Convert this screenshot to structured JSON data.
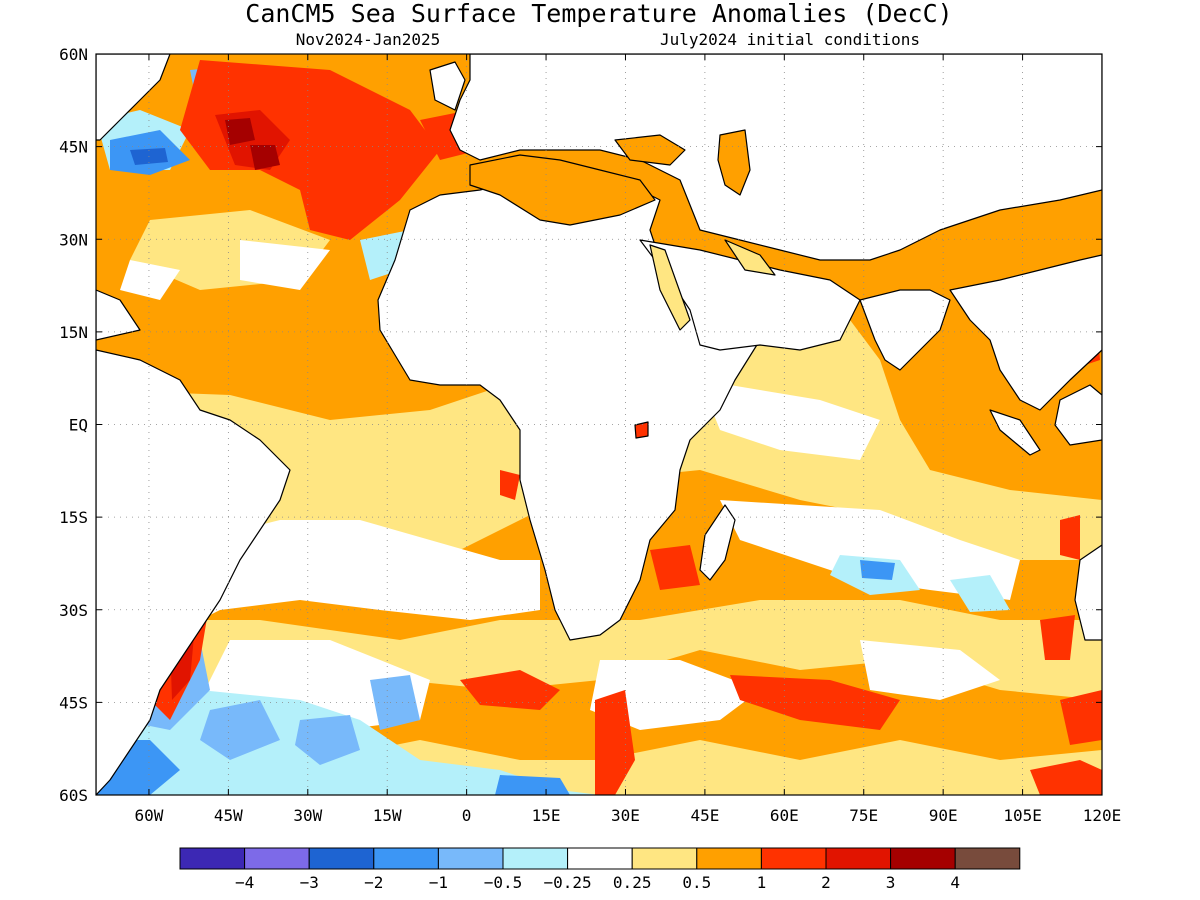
{
  "title": "CanCM5 Sea Surface Temperature Anomalies (DecC)",
  "subtitle_left": "Nov2024-Jan2025",
  "subtitle_right": "July2024 initial conditions",
  "map": {
    "lon_range": [
      -70,
      120
    ],
    "lat_range": [
      -60,
      60
    ],
    "x_ticks": [
      "60W",
      "45W",
      "30W",
      "15W",
      "0",
      "15E",
      "30E",
      "45E",
      "60E",
      "75E",
      "90E",
      "105E",
      "120E"
    ],
    "y_ticks": [
      "60N",
      "45N",
      "30N",
      "15N",
      "EQ",
      "15S",
      "30S",
      "45S",
      "60S"
    ],
    "gridlines": "dotted"
  },
  "colorbar": {
    "colors": [
      "#3c28b4",
      "#7d6ae8",
      "#1e64d2",
      "#3c96f5",
      "#78b9fa",
      "#b4f0fa",
      "#ffffff",
      "#ffe682",
      "#ffa000",
      "#ff3200",
      "#e11400",
      "#a50000",
      "#784b3c"
    ],
    "labels": [
      "-4",
      "-3",
      "-2",
      "-1",
      "-0.5",
      "-0.25",
      "0.25",
      "0.5",
      "1",
      "2",
      "3",
      "4"
    ]
  }
}
